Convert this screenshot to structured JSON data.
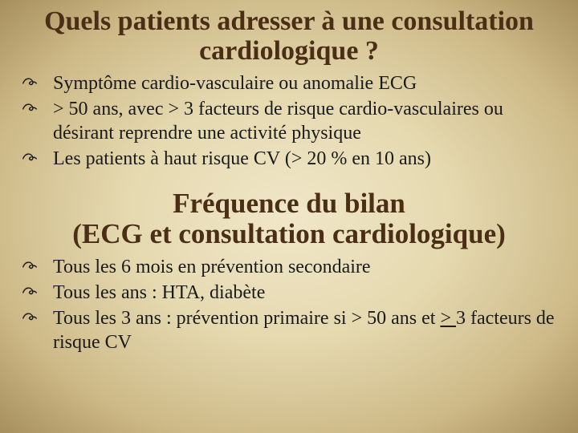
{
  "section1": {
    "title": "Quels patients adresser à une consultation cardiologique ?",
    "items": [
      {
        "text": "Symptôme cardio-vasculaire ou anomalie ECG"
      },
      {
        "text": "> 50 ans, avec > 3 facteurs de risque cardio-vasculaires ou désirant reprendre une activité physique"
      },
      {
        "text": "Les patients à haut risque CV (> 20 % en 10 ans)"
      }
    ]
  },
  "section2": {
    "title_line1": "Fréquence du bilan",
    "title_line2": "(ECG et consultation cardiologique)",
    "items": [
      {
        "text": "Tous les 6 mois en prévention secondaire"
      },
      {
        "text": "Tous les ans : HTA, diabète"
      },
      {
        "text_pre": "Tous les 3 ans : prévention primaire si > 50 ans et ",
        "underline": "> ",
        "text_post": "3 facteurs de risque CV"
      }
    ]
  },
  "bullet_glyph": "ĕ"
}
